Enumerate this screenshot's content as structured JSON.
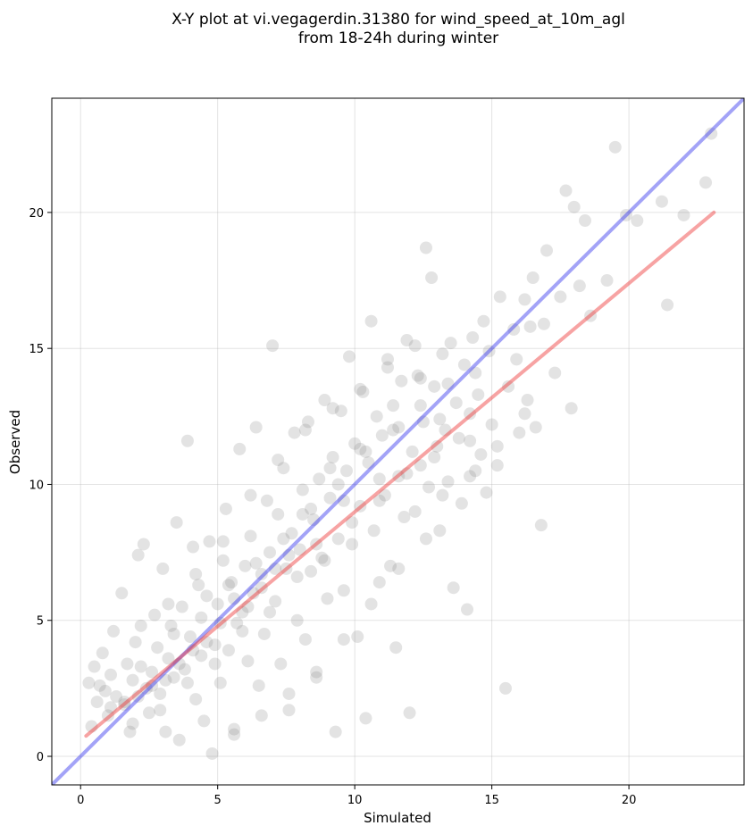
{
  "chart_data": {
    "type": "scatter",
    "title_line1": "X-Y plot at vi.vegagerdin.31380 for wind_speed_at_10m_agl",
    "title_line2": "from 18-24h during winter",
    "xlabel": "Simulated",
    "ylabel": "Observed",
    "xlim": [
      -1.05,
      24.2
    ],
    "ylim": [
      -1.05,
      24.2
    ],
    "xticks": [
      0,
      5,
      10,
      15,
      20
    ],
    "yticks": [
      0,
      5,
      10,
      15,
      20
    ],
    "grid": true,
    "point_color": "#808080",
    "identity_line": {
      "color": "#3333ee",
      "from": [
        -1.05,
        -1.05
      ],
      "to": [
        24.2,
        24.2
      ]
    },
    "fit_line": {
      "color": "#ee3333",
      "from": [
        0.2,
        0.75
      ],
      "to": [
        23.1,
        20.0
      ]
    },
    "points": [
      [
        0.3,
        2.7
      ],
      [
        0.5,
        3.3
      ],
      [
        0.6,
        2.0
      ],
      [
        0.4,
        1.1
      ],
      [
        0.8,
        3.8
      ],
      [
        0.9,
        2.4
      ],
      [
        1.0,
        1.5
      ],
      [
        1.1,
        3.0
      ],
      [
        1.2,
        4.6
      ],
      [
        1.3,
        2.2
      ],
      [
        1.5,
        6.0
      ],
      [
        1.6,
        1.9
      ],
      [
        1.7,
        3.4
      ],
      [
        1.8,
        0.9
      ],
      [
        1.9,
        2.8
      ],
      [
        2.0,
        4.2
      ],
      [
        2.1,
        7.4
      ],
      [
        2.2,
        3.3
      ],
      [
        2.3,
        7.8
      ],
      [
        2.4,
        2.5
      ],
      [
        2.5,
        1.6
      ],
      [
        2.6,
        3.1
      ],
      [
        2.7,
        5.2
      ],
      [
        2.8,
        4.0
      ],
      [
        2.9,
        2.3
      ],
      [
        3.0,
        6.9
      ],
      [
        3.1,
        0.9
      ],
      [
        3.2,
        3.6
      ],
      [
        3.3,
        4.8
      ],
      [
        3.4,
        2.9
      ],
      [
        3.5,
        8.6
      ],
      [
        3.6,
        0.6
      ],
      [
        3.7,
        5.5
      ],
      [
        3.8,
        3.2
      ],
      [
        3.9,
        11.6
      ],
      [
        4.0,
        4.4
      ],
      [
        4.1,
        7.7
      ],
      [
        4.2,
        2.1
      ],
      [
        4.3,
        6.3
      ],
      [
        4.4,
        3.7
      ],
      [
        4.5,
        1.3
      ],
      [
        4.6,
        5.9
      ],
      [
        4.7,
        7.9
      ],
      [
        4.8,
        0.1
      ],
      [
        4.9,
        4.1
      ],
      [
        5.0,
        5.6
      ],
      [
        5.1,
        2.7
      ],
      [
        5.2,
        7.2
      ],
      [
        5.3,
        9.1
      ],
      [
        5.4,
        3.9
      ],
      [
        5.5,
        6.4
      ],
      [
        5.6,
        1.0
      ],
      [
        5.7,
        4.9
      ],
      [
        5.8,
        11.3
      ],
      [
        5.9,
        5.3
      ],
      [
        6.0,
        7.0
      ],
      [
        6.1,
        3.5
      ],
      [
        6.2,
        8.1
      ],
      [
        6.3,
        6.0
      ],
      [
        6.4,
        12.1
      ],
      [
        6.5,
        2.6
      ],
      [
        6.6,
        6.7
      ],
      [
        6.7,
        4.5
      ],
      [
        6.8,
        9.4
      ],
      [
        6.9,
        7.5
      ],
      [
        7.0,
        15.1
      ],
      [
        7.1,
        5.7
      ],
      [
        7.2,
        8.9
      ],
      [
        7.3,
        3.4
      ],
      [
        7.4,
        10.6
      ],
      [
        7.5,
        6.9
      ],
      [
        7.6,
        1.7
      ],
      [
        7.7,
        8.2
      ],
      [
        7.8,
        11.9
      ],
      [
        7.9,
        5.0
      ],
      [
        8.0,
        7.6
      ],
      [
        8.1,
        9.8
      ],
      [
        8.2,
        4.3
      ],
      [
        8.3,
        12.3
      ],
      [
        8.4,
        6.8
      ],
      [
        8.5,
        8.7
      ],
      [
        8.6,
        2.9
      ],
      [
        8.7,
        10.2
      ],
      [
        8.8,
        7.3
      ],
      [
        8.9,
        13.1
      ],
      [
        9.0,
        5.8
      ],
      [
        9.1,
        9.5
      ],
      [
        9.2,
        11.0
      ],
      [
        9.3,
        0.9
      ],
      [
        9.4,
        8.0
      ],
      [
        9.5,
        12.7
      ],
      [
        9.6,
        6.1
      ],
      [
        9.7,
        10.5
      ],
      [
        9.8,
        14.7
      ],
      [
        9.9,
        7.8
      ],
      [
        10.0,
        11.5
      ],
      [
        10.1,
        4.4
      ],
      [
        10.2,
        9.2
      ],
      [
        10.3,
        13.4
      ],
      [
        10.4,
        1.4
      ],
      [
        10.5,
        10.8
      ],
      [
        10.6,
        16.0
      ],
      [
        10.7,
        8.3
      ],
      [
        10.8,
        12.5
      ],
      [
        10.9,
        6.4
      ],
      [
        11.0,
        11.8
      ],
      [
        11.1,
        9.6
      ],
      [
        11.2,
        14.3
      ],
      [
        11.3,
        7.0
      ],
      [
        11.4,
        12.9
      ],
      [
        11.5,
        4.0
      ],
      [
        11.6,
        10.3
      ],
      [
        11.7,
        13.8
      ],
      [
        11.8,
        8.8
      ],
      [
        11.9,
        15.3
      ],
      [
        12.0,
        1.6
      ],
      [
        12.1,
        11.2
      ],
      [
        12.2,
        9.0
      ],
      [
        12.3,
        14.0
      ],
      [
        12.4,
        10.7
      ],
      [
        12.5,
        12.3
      ],
      [
        12.6,
        18.7
      ],
      [
        12.7,
        9.9
      ],
      [
        12.8,
        17.6
      ],
      [
        12.9,
        13.6
      ],
      [
        13.0,
        11.4
      ],
      [
        13.1,
        8.3
      ],
      [
        13.2,
        14.8
      ],
      [
        13.3,
        12.0
      ],
      [
        13.4,
        10.1
      ],
      [
        13.5,
        15.2
      ],
      [
        13.6,
        6.2
      ],
      [
        13.7,
        13.0
      ],
      [
        13.8,
        11.7
      ],
      [
        13.9,
        9.3
      ],
      [
        14.0,
        14.4
      ],
      [
        14.1,
        5.4
      ],
      [
        14.2,
        12.6
      ],
      [
        14.3,
        15.4
      ],
      [
        14.4,
        10.5
      ],
      [
        14.5,
        13.3
      ],
      [
        14.6,
        11.1
      ],
      [
        14.7,
        16.0
      ],
      [
        14.8,
        9.7
      ],
      [
        14.9,
        14.9
      ],
      [
        15.0,
        12.2
      ],
      [
        15.2,
        10.7
      ],
      [
        15.3,
        16.9
      ],
      [
        15.5,
        2.5
      ],
      [
        15.6,
        13.6
      ],
      [
        15.8,
        15.7
      ],
      [
        16.0,
        11.9
      ],
      [
        16.2,
        16.8
      ],
      [
        16.3,
        13.1
      ],
      [
        16.5,
        17.6
      ],
      [
        16.6,
        12.1
      ],
      [
        16.8,
        8.5
      ],
      [
        16.9,
        15.9
      ],
      [
        17.0,
        18.6
      ],
      [
        17.3,
        14.1
      ],
      [
        17.5,
        16.9
      ],
      [
        17.7,
        20.8
      ],
      [
        17.9,
        12.8
      ],
      [
        18.0,
        20.2
      ],
      [
        18.2,
        17.3
      ],
      [
        18.4,
        19.7
      ],
      [
        18.6,
        16.2
      ],
      [
        19.2,
        17.5
      ],
      [
        19.5,
        22.4
      ],
      [
        19.9,
        19.9
      ],
      [
        20.3,
        19.7
      ],
      [
        21.2,
        20.4
      ],
      [
        21.4,
        16.6
      ],
      [
        22.0,
        19.9
      ],
      [
        22.8,
        21.1
      ],
      [
        23.0,
        22.9
      ],
      [
        15.9,
        14.6
      ],
      [
        16.4,
        15.8
      ],
      [
        14.2,
        11.6
      ],
      [
        13.1,
        12.4
      ],
      [
        12.4,
        13.9
      ],
      [
        11.6,
        12.1
      ],
      [
        10.9,
        10.2
      ],
      [
        10.2,
        11.3
      ],
      [
        9.6,
        9.4
      ],
      [
        9.1,
        10.6
      ],
      [
        8.6,
        7.8
      ],
      [
        8.1,
        8.9
      ],
      [
        7.6,
        7.4
      ],
      [
        7.1,
        6.9
      ],
      [
        6.6,
        6.2
      ],
      [
        6.1,
        5.5
      ],
      [
        5.6,
        5.8
      ],
      [
        5.1,
        4.9
      ],
      [
        4.6,
        4.2
      ],
      [
        4.1,
        3.9
      ],
      [
        3.6,
        3.4
      ],
      [
        3.1,
        2.8
      ],
      [
        2.6,
        2.6
      ],
      [
        2.1,
        2.2
      ],
      [
        1.6,
        2.0
      ],
      [
        1.1,
        1.8
      ],
      [
        0.7,
        2.6
      ],
      [
        3.4,
        4.5
      ],
      [
        4.4,
        5.1
      ],
      [
        5.4,
        6.3
      ],
      [
        6.4,
        7.1
      ],
      [
        7.4,
        8.0
      ],
      [
        8.4,
        9.1
      ],
      [
        9.4,
        10.0
      ],
      [
        10.4,
        11.2
      ],
      [
        11.4,
        12.0
      ],
      [
        12.4,
        12.9
      ],
      [
        13.4,
        13.7
      ],
      [
        14.4,
        14.1
      ],
      [
        8.9,
        7.2
      ],
      [
        9.9,
        8.6
      ],
      [
        10.9,
        9.4
      ],
      [
        11.9,
        10.4
      ],
      [
        12.9,
        11.0
      ],
      [
        7.9,
        6.6
      ],
      [
        6.9,
        5.3
      ],
      [
        5.9,
        4.6
      ],
      [
        4.9,
        3.4
      ],
      [
        3.9,
        2.7
      ],
      [
        2.9,
        1.7
      ],
      [
        1.9,
        1.2
      ],
      [
        6.2,
        9.6
      ],
      [
        7.2,
        10.9
      ],
      [
        8.2,
        12.0
      ],
      [
        9.2,
        12.8
      ],
      [
        10.2,
        13.5
      ],
      [
        11.2,
        14.6
      ],
      [
        12.2,
        15.1
      ],
      [
        3.2,
        5.6
      ],
      [
        4.2,
        6.7
      ],
      [
        5.2,
        7.9
      ],
      [
        2.2,
        4.8
      ],
      [
        13.2,
        9.6
      ],
      [
        14.2,
        10.3
      ],
      [
        15.2,
        11.4
      ],
      [
        16.2,
        12.6
      ],
      [
        11.6,
        6.9
      ],
      [
        12.6,
        8.0
      ],
      [
        10.6,
        5.6
      ],
      [
        9.6,
        4.3
      ],
      [
        8.6,
        3.1
      ],
      [
        7.6,
        2.3
      ],
      [
        6.6,
        1.5
      ],
      [
        5.6,
        0.8
      ]
    ]
  }
}
